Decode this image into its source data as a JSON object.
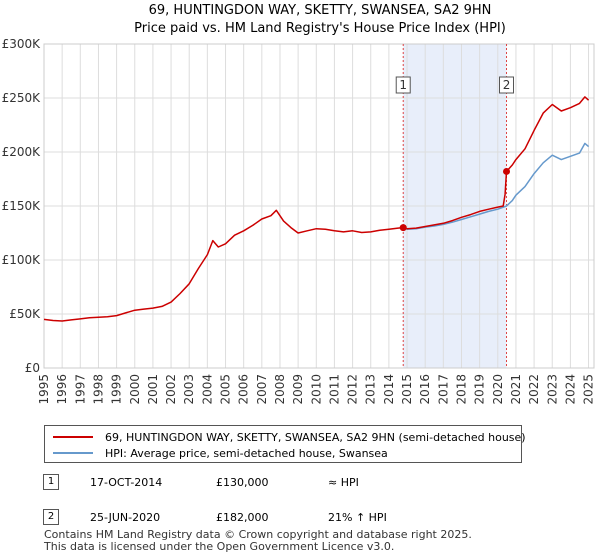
{
  "chart_data": {
    "type": "line",
    "title": "69, HUNTINGDON WAY, SKETTY, SWANSEA, SA2 9HN",
    "subtitle": "Price paid vs. HM Land Registry's House Price Index (HPI)",
    "xlim": [
      1995,
      2025.3
    ],
    "ylim": [
      0,
      300000
    ],
    "x_ticks": [
      "1995",
      "1996",
      "1997",
      "1998",
      "1999",
      "2000",
      "2001",
      "2002",
      "2003",
      "2004",
      "2005",
      "2006",
      "2007",
      "2008",
      "2009",
      "2010",
      "2011",
      "2012",
      "2013",
      "2014",
      "2015",
      "2016",
      "2017",
      "2018",
      "2019",
      "2020",
      "2021",
      "2022",
      "2023",
      "2024",
      "2025"
    ],
    "y_ticks": [
      {
        "value": 0,
        "label": "£0"
      },
      {
        "value": 50000,
        "label": "£50K"
      },
      {
        "value": 100000,
        "label": "£100K"
      },
      {
        "value": 150000,
        "label": "£150K"
      },
      {
        "value": 200000,
        "label": "£200K"
      },
      {
        "value": 250000,
        "label": "£250K"
      },
      {
        "value": 300000,
        "label": "£300K"
      }
    ],
    "grid": true,
    "shaded_region": {
      "from": 2014.79,
      "to": 2020.48
    },
    "series": [
      {
        "name": "69, HUNTINGDON WAY, SKETTY, SWANSEA, SA2 9HN (semi-detached house)",
        "color": "#cc0000",
        "points": [
          [
            1995.0,
            45000
          ],
          [
            1995.5,
            44000
          ],
          [
            1996.0,
            43500
          ],
          [
            1996.5,
            44500
          ],
          [
            1997.0,
            45500
          ],
          [
            1997.5,
            46500
          ],
          [
            1998.0,
            47000
          ],
          [
            1998.5,
            47500
          ],
          [
            1999.0,
            48500
          ],
          [
            1999.5,
            51000
          ],
          [
            2000.0,
            53500
          ],
          [
            2000.5,
            54500
          ],
          [
            2001.0,
            55500
          ],
          [
            2001.5,
            57000
          ],
          [
            2002.0,
            61000
          ],
          [
            2002.5,
            69000
          ],
          [
            2003.0,
            78000
          ],
          [
            2003.5,
            92000
          ],
          [
            2004.0,
            105000
          ],
          [
            2004.3,
            118000
          ],
          [
            2004.6,
            112000
          ],
          [
            2005.0,
            115000
          ],
          [
            2005.5,
            123000
          ],
          [
            2006.0,
            127000
          ],
          [
            2006.5,
            132000
          ],
          [
            2007.0,
            138000
          ],
          [
            2007.5,
            141000
          ],
          [
            2007.8,
            146000
          ],
          [
            2008.2,
            136000
          ],
          [
            2008.6,
            130000
          ],
          [
            2009.0,
            125000
          ],
          [
            2009.5,
            127000
          ],
          [
            2010.0,
            129000
          ],
          [
            2010.5,
            128500
          ],
          [
            2011.0,
            127000
          ],
          [
            2011.5,
            126000
          ],
          [
            2012.0,
            127000
          ],
          [
            2012.5,
            125500
          ],
          [
            2013.0,
            126000
          ],
          [
            2013.5,
            127500
          ],
          [
            2014.0,
            128500
          ],
          [
            2014.5,
            129500
          ],
          [
            2014.79,
            130000
          ],
          [
            2015.0,
            129000
          ],
          [
            2015.5,
            129500
          ],
          [
            2016.0,
            131000
          ],
          [
            2016.5,
            132500
          ],
          [
            2017.0,
            134000
          ],
          [
            2017.5,
            136500
          ],
          [
            2018.0,
            139500
          ],
          [
            2018.5,
            142000
          ],
          [
            2019.0,
            145000
          ],
          [
            2019.5,
            147000
          ],
          [
            2020.0,
            149000
          ],
          [
            2020.3,
            150000
          ],
          [
            2020.4,
            161000
          ],
          [
            2020.48,
            182000
          ],
          [
            2020.8,
            188000
          ],
          [
            2021.0,
            193000
          ],
          [
            2021.5,
            203000
          ],
          [
            2022.0,
            220000
          ],
          [
            2022.5,
            236000
          ],
          [
            2023.0,
            244000
          ],
          [
            2023.5,
            238000
          ],
          [
            2024.0,
            241000
          ],
          [
            2024.5,
            245000
          ],
          [
            2024.8,
            251000
          ],
          [
            2025.0,
            248000
          ]
        ]
      },
      {
        "name": "HPI: Average price, semi-detached house, Swansea",
        "color": "#6699cc",
        "points": [
          [
            2014.79,
            130000
          ],
          [
            2015.0,
            128500
          ],
          [
            2015.5,
            129000
          ],
          [
            2016.0,
            130500
          ],
          [
            2016.5,
            131500
          ],
          [
            2017.0,
            133000
          ],
          [
            2017.5,
            135000
          ],
          [
            2018.0,
            137500
          ],
          [
            2018.5,
            140000
          ],
          [
            2019.0,
            142500
          ],
          [
            2019.5,
            145000
          ],
          [
            2020.0,
            147000
          ],
          [
            2020.48,
            150000
          ],
          [
            2020.8,
            155000
          ],
          [
            2021.0,
            160000
          ],
          [
            2021.5,
            168000
          ],
          [
            2022.0,
            180000
          ],
          [
            2022.5,
            190000
          ],
          [
            2023.0,
            197000
          ],
          [
            2023.5,
            193000
          ],
          [
            2024.0,
            196000
          ],
          [
            2024.5,
            199000
          ],
          [
            2024.8,
            208000
          ],
          [
            2025.0,
            205000
          ]
        ]
      }
    ],
    "markers": [
      {
        "label": "1",
        "x": 2014.79,
        "y": 130000
      },
      {
        "label": "2",
        "x": 2020.48,
        "y": 182000
      }
    ]
  },
  "legend": {
    "items": [
      {
        "label": "69, HUNTINGDON WAY, SKETTY, SWANSEA, SA2 9HN (semi-detached house)",
        "color": "#cc0000"
      },
      {
        "label": "HPI: Average price, semi-detached house, Swansea",
        "color": "#6699cc"
      }
    ]
  },
  "annotations": [
    {
      "num": "1",
      "date": "17-OCT-2014",
      "price": "£130,000",
      "hpi": "≈ HPI"
    },
    {
      "num": "2",
      "date": "25-JUN-2020",
      "price": "£182,000",
      "hpi": "21% ↑ HPI"
    }
  ],
  "footer": {
    "line1": "Contains HM Land Registry data © Crown copyright and database right 2025.",
    "line2": "This data is licensed under the Open Government Licence v3.0."
  }
}
